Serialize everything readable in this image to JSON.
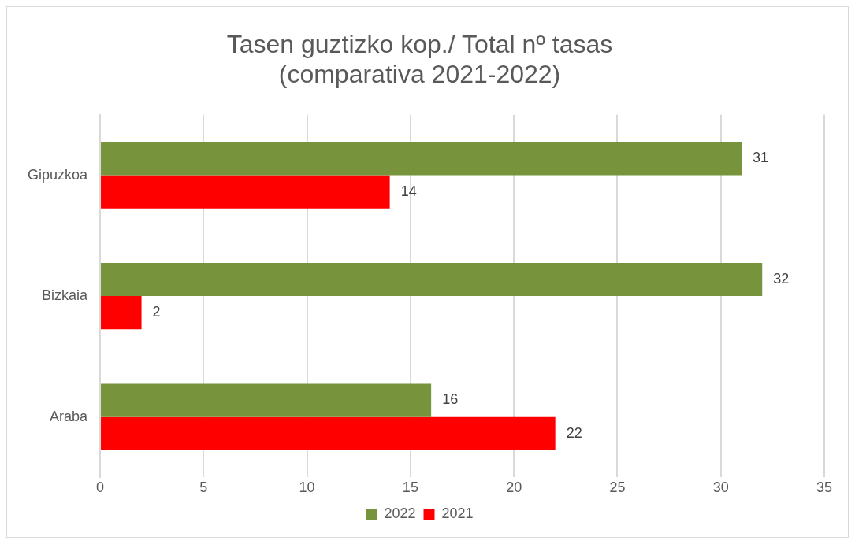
{
  "chart_data": {
    "type": "bar",
    "orientation": "horizontal",
    "title": "Tasen guztizko kop./ Total nº tasas\n(comparativa 2021-2022)",
    "categories": [
      "Gipuzkoa",
      "Bizkaia",
      "Araba"
    ],
    "series": [
      {
        "name": "2022",
        "color": "#77933c",
        "values": [
          31,
          32,
          16
        ]
      },
      {
        "name": "2021",
        "color": "#ff0000",
        "values": [
          14,
          2,
          22
        ]
      }
    ],
    "xlim": [
      0,
      35
    ],
    "xticks": [
      0,
      5,
      10,
      15,
      20,
      25,
      30,
      35
    ],
    "grid": "x",
    "legend": "bottom",
    "data_labels": true
  }
}
